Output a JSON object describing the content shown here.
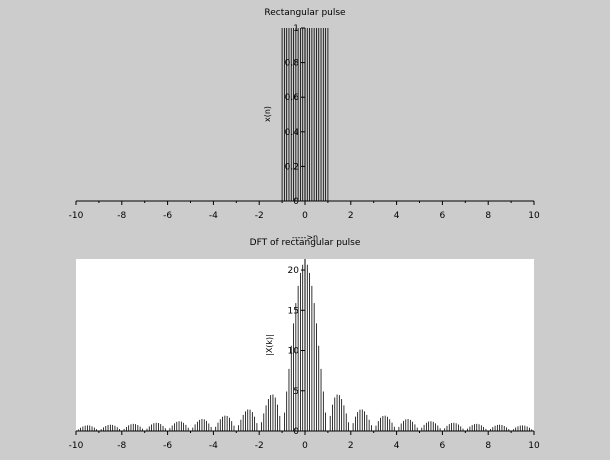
{
  "chart_data": [
    {
      "type": "stem",
      "title": "Rectangular pulse",
      "xlabel": "----->n",
      "ylabel": "x(n)",
      "xlim": [
        -10,
        10
      ],
      "ylim": [
        0,
        1
      ],
      "x_ticks": [
        "-10",
        "-8",
        "-6",
        "-4",
        "-2",
        "0",
        "2",
        "4",
        "6",
        "8",
        "10"
      ],
      "y_ticks": [
        "0",
        "0.2",
        "0.4",
        "0.6",
        "0.8",
        "1"
      ],
      "plot_background": "#cccccc",
      "series": [
        {
          "x_start": -10,
          "x_end": 10,
          "x_step": 0.1,
          "nonzero_range": [
            -1,
            1
          ],
          "value_in_range": 1,
          "value_outside": 0
        }
      ]
    },
    {
      "type": "stem",
      "title": "DFT of rectangular pulse",
      "xlabel": "",
      "ylabel": "|X(k)|",
      "xlim": [
        -10,
        10
      ],
      "ylim": [
        0,
        21
      ],
      "x_ticks": [
        "-10",
        "-8",
        "-6",
        "-4",
        "-2",
        "0",
        "2",
        "4",
        "6",
        "8",
        "10"
      ],
      "y_ticks": [
        "0",
        "5",
        "10",
        "15",
        "20"
      ],
      "plot_background": "#ffffff",
      "series": [
        {
          "function": "abs_sinc",
          "x_start": -10,
          "x_end": 10,
          "x_step": 0.1,
          "peak": 21,
          "main_lobe_zero": 0.5
        }
      ]
    }
  ]
}
